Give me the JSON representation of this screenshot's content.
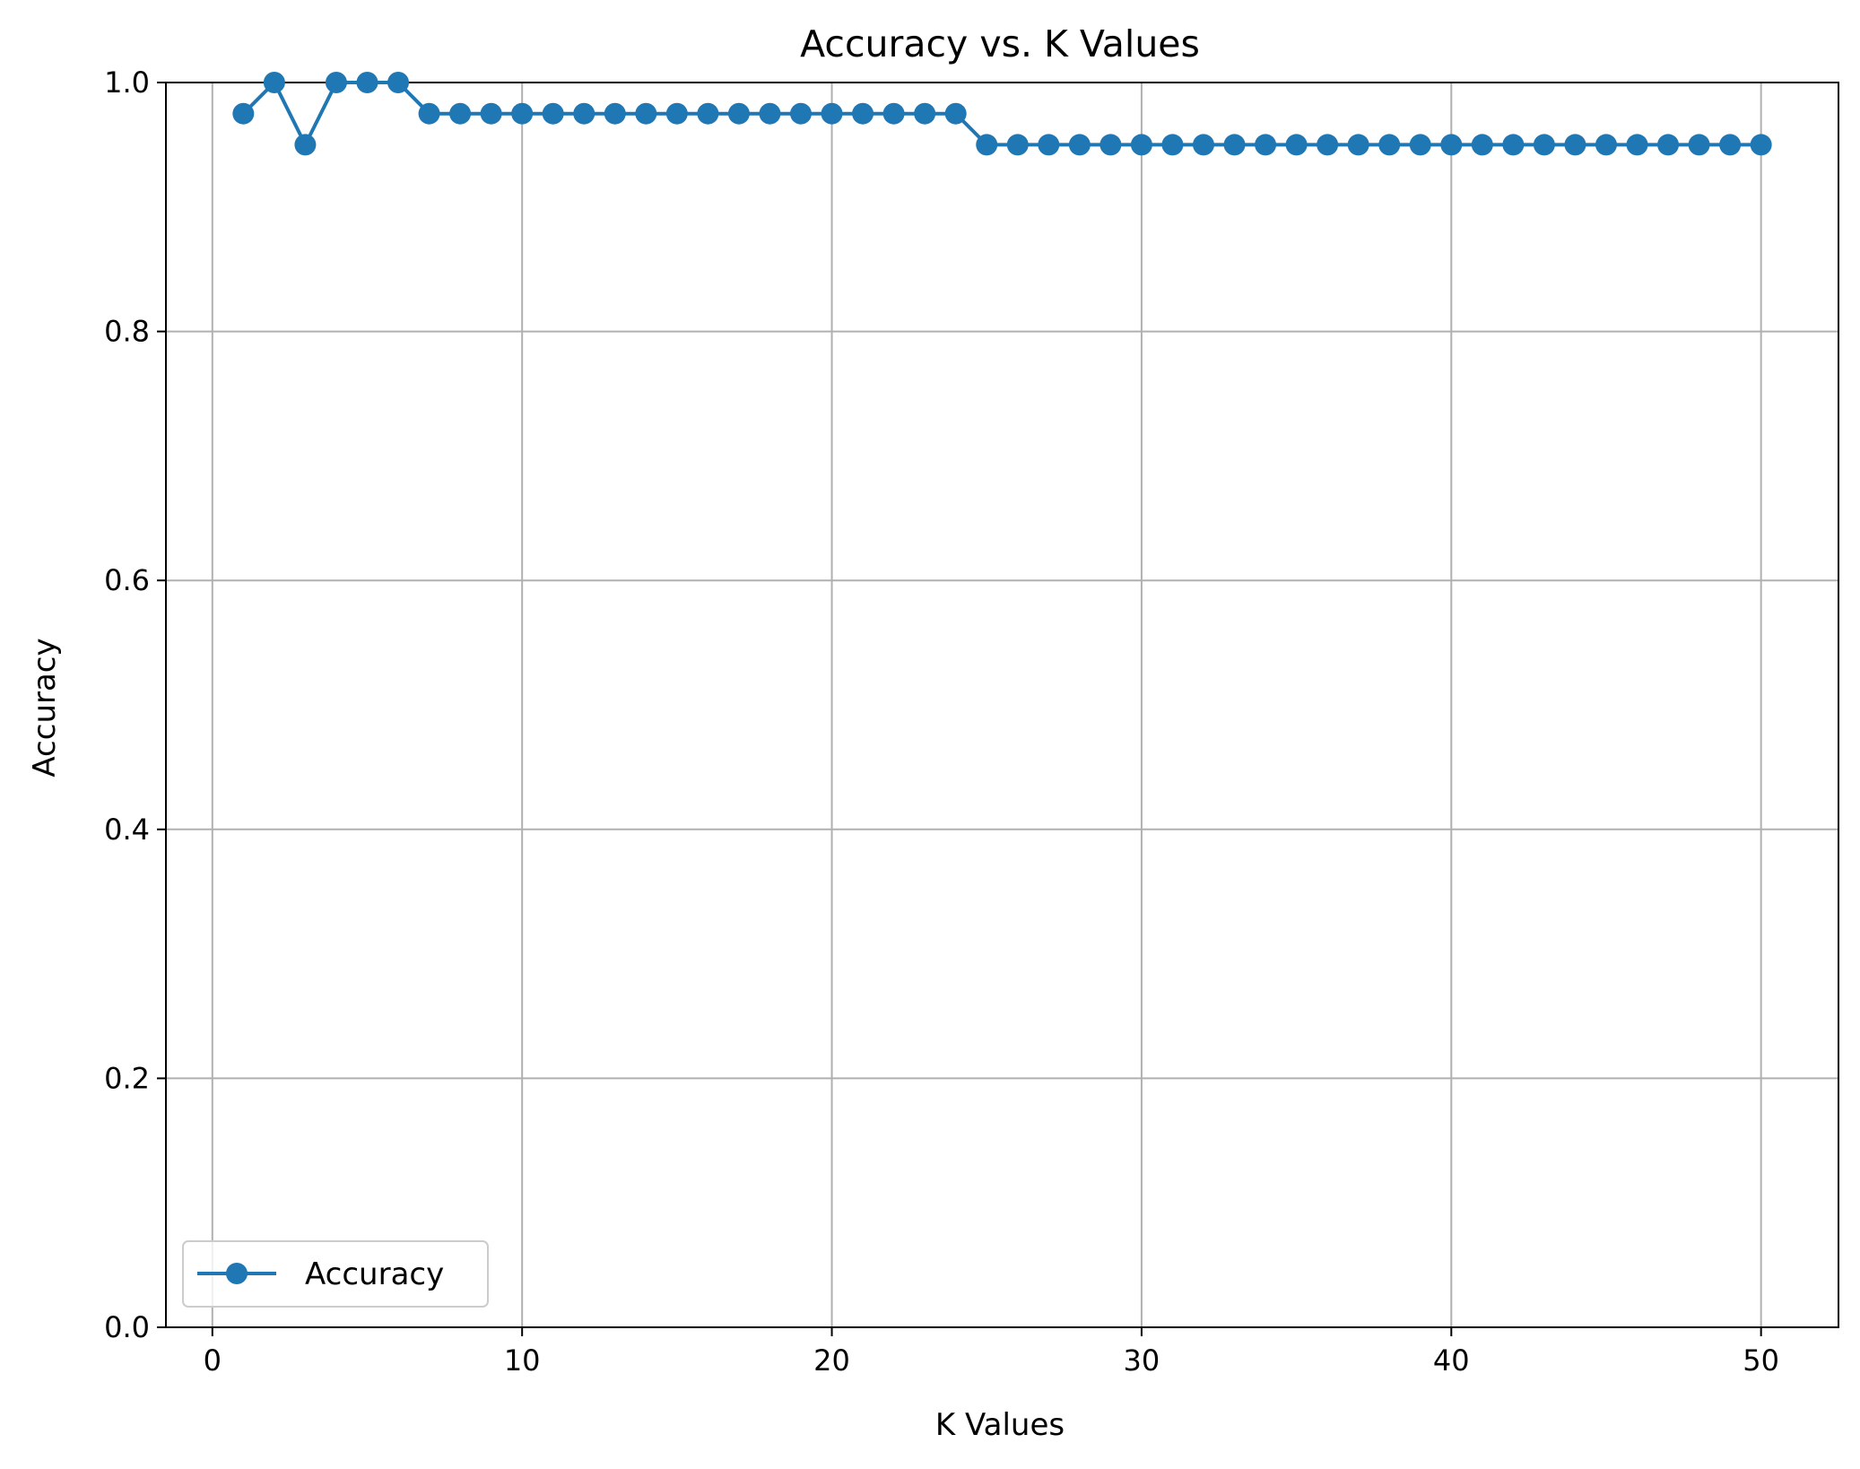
{
  "chart_data": {
    "type": "line",
    "title": "Accuracy vs. K Values",
    "xlabel": "K Values",
    "ylabel": "Accuracy",
    "xlim": [
      -1.5,
      52.5
    ],
    "ylim": [
      0.0,
      1.0
    ],
    "xticks": [
      0,
      10,
      20,
      30,
      40,
      50
    ],
    "xtick_labels": [
      "0",
      "10",
      "20",
      "30",
      "40",
      "50"
    ],
    "yticks": [
      0.0,
      0.2,
      0.4,
      0.6,
      0.8,
      1.0
    ],
    "ytick_labels": [
      "0.0",
      "0.2",
      "0.4",
      "0.6",
      "0.8",
      "1.0"
    ],
    "grid": true,
    "legend_position": "lower-left",
    "series": [
      {
        "name": "Accuracy",
        "color": "#1f77b4",
        "marker": "circle",
        "x": [
          1,
          2,
          3,
          4,
          5,
          6,
          7,
          8,
          9,
          10,
          11,
          12,
          13,
          14,
          15,
          16,
          17,
          18,
          19,
          20,
          21,
          22,
          23,
          24,
          25,
          26,
          27,
          28,
          29,
          30,
          31,
          32,
          33,
          34,
          35,
          36,
          37,
          38,
          39,
          40,
          41,
          42,
          43,
          44,
          45,
          46,
          47,
          48,
          49,
          50
        ],
        "y": [
          0.975,
          1.0,
          0.95,
          1.0,
          1.0,
          1.0,
          0.975,
          0.975,
          0.975,
          0.975,
          0.975,
          0.975,
          0.975,
          0.975,
          0.975,
          0.975,
          0.975,
          0.975,
          0.975,
          0.975,
          0.975,
          0.975,
          0.975,
          0.975,
          0.95,
          0.95,
          0.95,
          0.95,
          0.95,
          0.95,
          0.95,
          0.95,
          0.95,
          0.95,
          0.95,
          0.95,
          0.95,
          0.95,
          0.95,
          0.95,
          0.95,
          0.95,
          0.95,
          0.95,
          0.95,
          0.95,
          0.95,
          0.95,
          0.95,
          0.95
        ]
      }
    ]
  }
}
